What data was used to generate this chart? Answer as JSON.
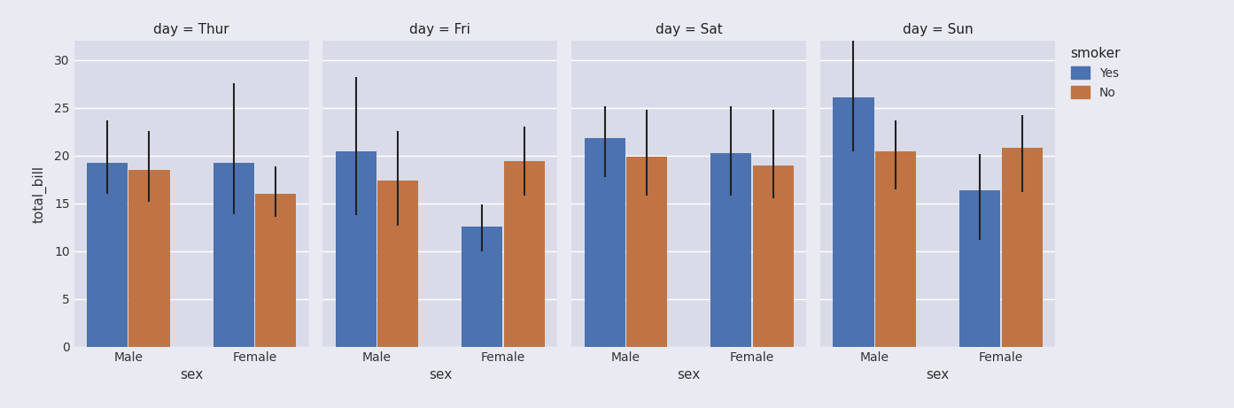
{
  "days": [
    "Thur",
    "Fri",
    "Sat",
    "Sun"
  ],
  "sexes": [
    "Male",
    "Female"
  ],
  "smokers": [
    "Yes",
    "No"
  ],
  "bar_colors": {
    "Yes": "#4c72b0",
    "No": "#c07444"
  },
  "values": {
    "Thur": {
      "Male": {
        "Yes": 19.2,
        "No": 18.5
      },
      "Female": {
        "Yes": 19.2,
        "No": 16.0
      }
    },
    "Fri": {
      "Male": {
        "Yes": 20.4,
        "No": 17.4
      },
      "Female": {
        "Yes": 12.6,
        "No": 19.4
      }
    },
    "Sat": {
      "Male": {
        "Yes": 21.8,
        "No": 19.9
      },
      "Female": {
        "Yes": 20.3,
        "No": 19.0
      }
    },
    "Sun": {
      "Male": {
        "Yes": 26.1,
        "No": 20.4
      },
      "Female": {
        "Yes": 16.4,
        "No": 20.8
      }
    }
  },
  "errors": {
    "Thur": {
      "Male": {
        "Yes": [
          3.2,
          4.5
        ],
        "No": [
          3.3,
          4.1
        ]
      },
      "Female": {
        "Yes": [
          5.3,
          8.4
        ],
        "No": [
          2.4,
          2.9
        ]
      }
    },
    "Fri": {
      "Male": {
        "Yes": [
          6.6,
          7.8
        ],
        "No": [
          4.7,
          5.2
        ]
      },
      "Female": {
        "Yes": [
          2.6,
          2.3
        ],
        "No": [
          3.6,
          3.6
        ]
      }
    },
    "Sat": {
      "Male": {
        "Yes": [
          4.0,
          3.4
        ],
        "No": [
          4.1,
          4.9
        ]
      },
      "Female": {
        "Yes": [
          4.5,
          4.9
        ],
        "No": [
          3.5,
          5.8
        ]
      }
    },
    "Sun": {
      "Male": {
        "Yes": [
          5.7,
          6.0
        ],
        "No": [
          3.9,
          3.3
        ]
      },
      "Female": {
        "Yes": [
          5.2,
          3.8
        ],
        "No": [
          4.6,
          3.4
        ]
      }
    }
  },
  "ylim": [
    0,
    32
  ],
  "yticks": [
    0,
    5,
    10,
    15,
    20,
    25,
    30
  ],
  "ylabel": "total_bill",
  "xlabel": "sex",
  "fig_facecolor": "#eaeaf2",
  "ax_facecolor": "#d9dce8",
  "grid_color": "#ffffff",
  "title_fontsize": 11,
  "label_fontsize": 11,
  "tick_fontsize": 10,
  "legend_title": "smoker",
  "bar_width": 0.35
}
